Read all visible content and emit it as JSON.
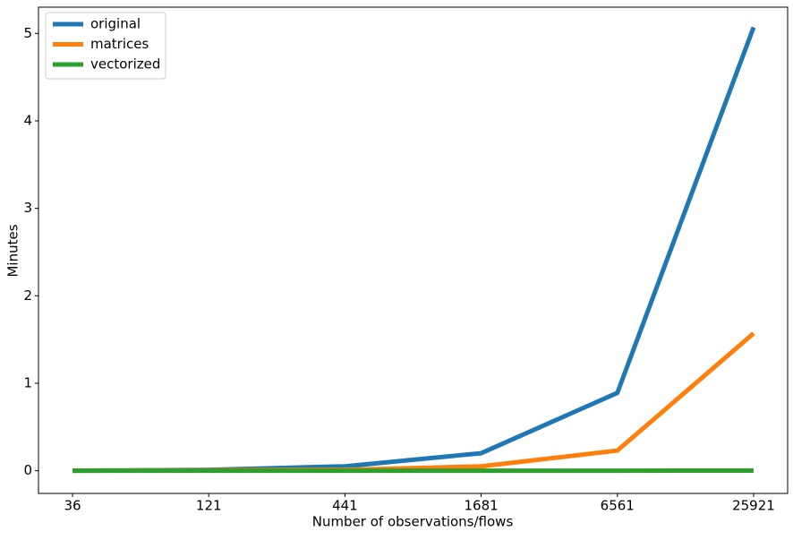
{
  "chart_data": {
    "type": "line",
    "x_label": "Number of observations/flows",
    "y_label": "Minutes",
    "categories": [
      "36",
      "121",
      "441",
      "1681",
      "6561",
      "25921"
    ],
    "series": [
      {
        "name": "original",
        "color": "#1f77b4",
        "values": [
          0.0,
          0.01,
          0.05,
          0.2,
          0.89,
          5.07
        ]
      },
      {
        "name": "matrices",
        "color": "#ff7f0e",
        "values": [
          0.0,
          0.005,
          0.01,
          0.05,
          0.23,
          1.57
        ]
      },
      {
        "name": "vectorized",
        "color": "#2ca02c",
        "values": [
          0.0,
          0.0,
          0.0,
          0.0,
          0.0,
          0.001
        ]
      }
    ],
    "ylim": [
      -0.26,
      5.3
    ],
    "yticks": [
      0,
      1,
      2,
      3,
      4,
      5
    ],
    "legend": "upper left"
  }
}
